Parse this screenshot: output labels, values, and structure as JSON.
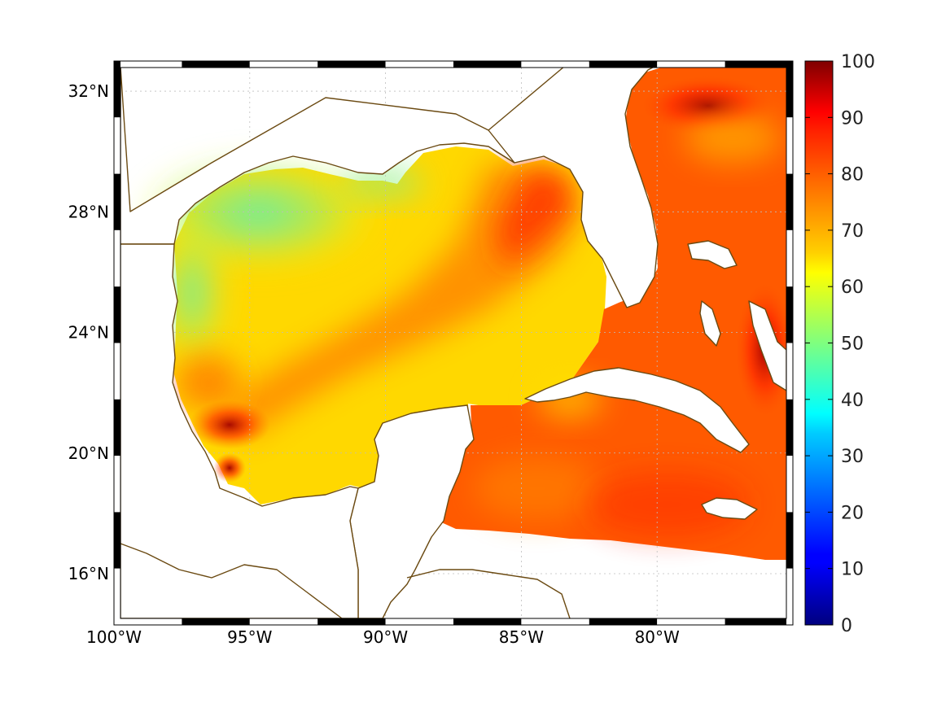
{
  "map": {
    "type": "heatmap",
    "lon_range": [
      -100,
      -75
    ],
    "lat_range": [
      14.3,
      33
    ],
    "x_ticks": [
      {
        "value": -100,
        "label": "100°W"
      },
      {
        "value": -95,
        "label": "95°W"
      },
      {
        "value": -90,
        "label": "90°W"
      },
      {
        "value": -85,
        "label": "85°W"
      },
      {
        "value": -80,
        "label": "80°W"
      }
    ],
    "y_ticks": [
      {
        "value": 16,
        "label": "16°N"
      },
      {
        "value": 20,
        "label": "20°N"
      },
      {
        "value": 24,
        "label": "24°N"
      },
      {
        "value": 28,
        "label": "28°N"
      },
      {
        "value": 32,
        "label": "32°N"
      }
    ],
    "grid": true,
    "coastline_color": "#6b4a12",
    "colormap": "jet"
  },
  "colorbar": {
    "range": [
      0,
      100
    ],
    "ticks": [
      "0",
      "10",
      "20",
      "30",
      "40",
      "50",
      "60",
      "70",
      "80",
      "90",
      "100"
    ],
    "placement": "right"
  }
}
